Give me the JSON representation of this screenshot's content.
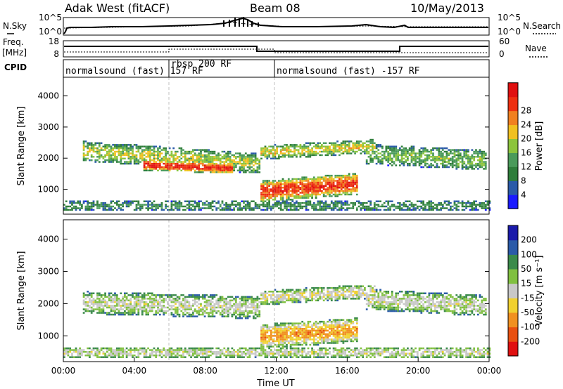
{
  "header": {
    "station": "Adak West (fitACF)",
    "beam": "Beam 08",
    "date": "10/May/2013"
  },
  "side_labels": {
    "nsky": "N.Sky",
    "nsearch": "N.Search",
    "freq": "Freq.",
    "freq_unit": "[MHz]",
    "nave": "Nave",
    "cpid": "CPID"
  },
  "noise_panel": {
    "left_ticks": [
      "10^5",
      "10^0"
    ],
    "right_ticks": [
      "10^5",
      "10^0"
    ]
  },
  "freq_panel": {
    "left_ticks": [
      "18",
      "8"
    ],
    "right_ticks": [
      "60",
      "0"
    ]
  },
  "cpid_segments": [
    {
      "label": "normalsound (fast) 157 RF",
      "start_hour": 0,
      "end_hour": 6
    },
    {
      "label": "rbsp 200 RF",
      "start_hour": 6,
      "end_hour": 11
    },
    {
      "label": "normalsound (fast) -157 RF",
      "start_hour": 11,
      "end_hour": 24
    }
  ],
  "chart_data": [
    {
      "type": "heatmap",
      "title": "Power",
      "ylabel": "Slant Range [km]",
      "xlabel": "Time UT",
      "xlim": [
        0,
        24
      ],
      "ylim": [
        200,
        4600
      ],
      "y_ticks": [
        "1000",
        "2000",
        "3000",
        "4000"
      ],
      "colorbar_label": "Power [dB]",
      "colorbar_ticks": [
        "4",
        "8",
        "12",
        "16",
        "20",
        "24",
        "28"
      ],
      "colorbar_colors": [
        "#1a1aff",
        "#2a5aa8",
        "#2e7d3a",
        "#4a9a5a",
        "#8cc43c",
        "#f0c020",
        "#f08020",
        "#ee3010",
        "#e01010"
      ],
      "bands": [
        {
          "t0": 1.0,
          "t1": 11.0,
          "center_start": 2200,
          "center_end": 1800,
          "width": 650,
          "level": 0.55
        },
        {
          "t0": 4.5,
          "t1": 9.5,
          "center_start": 1750,
          "center_end": 1650,
          "width": 350,
          "level": 0.95
        },
        {
          "t0": 11.0,
          "t1": 16.5,
          "center_start": 900,
          "center_end": 1150,
          "width": 700,
          "level": 0.9
        },
        {
          "t0": 11.0,
          "t1": 17.5,
          "center_start": 2150,
          "center_end": 2350,
          "width": 450,
          "level": 0.6
        },
        {
          "t0": 17.0,
          "t1": 23.8,
          "center_start": 2100,
          "center_end": 1900,
          "width": 650,
          "level": 0.45
        },
        {
          "t0": 0.0,
          "t1": 24.0,
          "center_start": 450,
          "center_end": 450,
          "width": 350,
          "level": 0.3
        }
      ]
    },
    {
      "type": "heatmap",
      "title": "Velocity",
      "ylabel": "Slant Range [km]",
      "xlabel": "Time UT",
      "xlim": [
        0,
        24
      ],
      "ylim": [
        200,
        4600
      ],
      "y_ticks": [
        "1000",
        "2000",
        "3000",
        "4000"
      ],
      "x_ticks": [
        "00:00",
        "04:00",
        "08:00",
        "12:00",
        "16:00",
        "20:00",
        "00:00"
      ],
      "colorbar_label": "Velocity [m s⁻¹]",
      "colorbar_ticks": [
        "200",
        "100",
        "50",
        "15",
        "-15",
        "-50",
        "-100",
        "-200"
      ],
      "colorbar_colors": [
        "#1a1aaa",
        "#2a5aa8",
        "#3a8a4a",
        "#80c040",
        "#c8c8c8",
        "#f0d030",
        "#f09020",
        "#e85010",
        "#e01010"
      ],
      "bands": [
        {
          "t0": 1.0,
          "t1": 11.0,
          "center_start": 2000,
          "center_end": 1850,
          "width": 700,
          "level": 0.5
        },
        {
          "t0": 11.0,
          "t1": 16.5,
          "center_start": 950,
          "center_end": 1150,
          "width": 750,
          "level": 0.75
        },
        {
          "t0": 11.0,
          "t1": 17.5,
          "center_start": 2150,
          "center_end": 2350,
          "width": 450,
          "level": 0.55
        },
        {
          "t0": 17.0,
          "t1": 23.8,
          "center_start": 2100,
          "center_end": 1900,
          "width": 650,
          "level": 0.5
        },
        {
          "t0": 0.0,
          "t1": 24.0,
          "center_start": 450,
          "center_end": 450,
          "width": 350,
          "level": 0.5
        }
      ]
    }
  ]
}
